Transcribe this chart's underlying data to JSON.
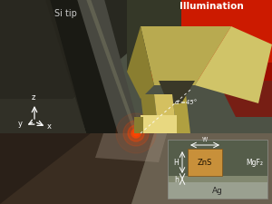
{
  "illumination_text": "Illumination",
  "si_tip_text": "Si tip",
  "alpha_text": "αʼ=45°",
  "w_label": "w",
  "H_label": "H",
  "h_label": "h",
  "ZnS_label": "ZnS",
  "MgF2_label": "MgF₂",
  "Ag_label": "Ag",
  "colors": {
    "background": "#4d5245",
    "dark_bg_left": "#282820",
    "dark_bg_right": "#3a3d32",
    "red_bright": "#cc1a00",
    "red_dark": "#8a0800",
    "gold_top_face": "#b8aa50",
    "gold_left_face": "#8a7e30",
    "gold_right_face": "#d0c468",
    "gold_stem_front": "#d4c060",
    "gold_stem_right": "#b0a040",
    "gold_slit": "#e8d880",
    "floor_left_dark": "#2a2018",
    "floor_right_mid": "#6a6050",
    "floor_left_mid": "#4a3a2a",
    "tip_left": "#1a1a14",
    "tip_right": "#484840",
    "tip_shadow": "#2a2820",
    "red_glow": "#ff4400",
    "white": "#ffffff",
    "zns_color": "#c8903a",
    "mgf2_color": "#828870",
    "ag_color": "#9aa090",
    "inset_bg": "#555d4a",
    "inset_border": "#888880"
  }
}
